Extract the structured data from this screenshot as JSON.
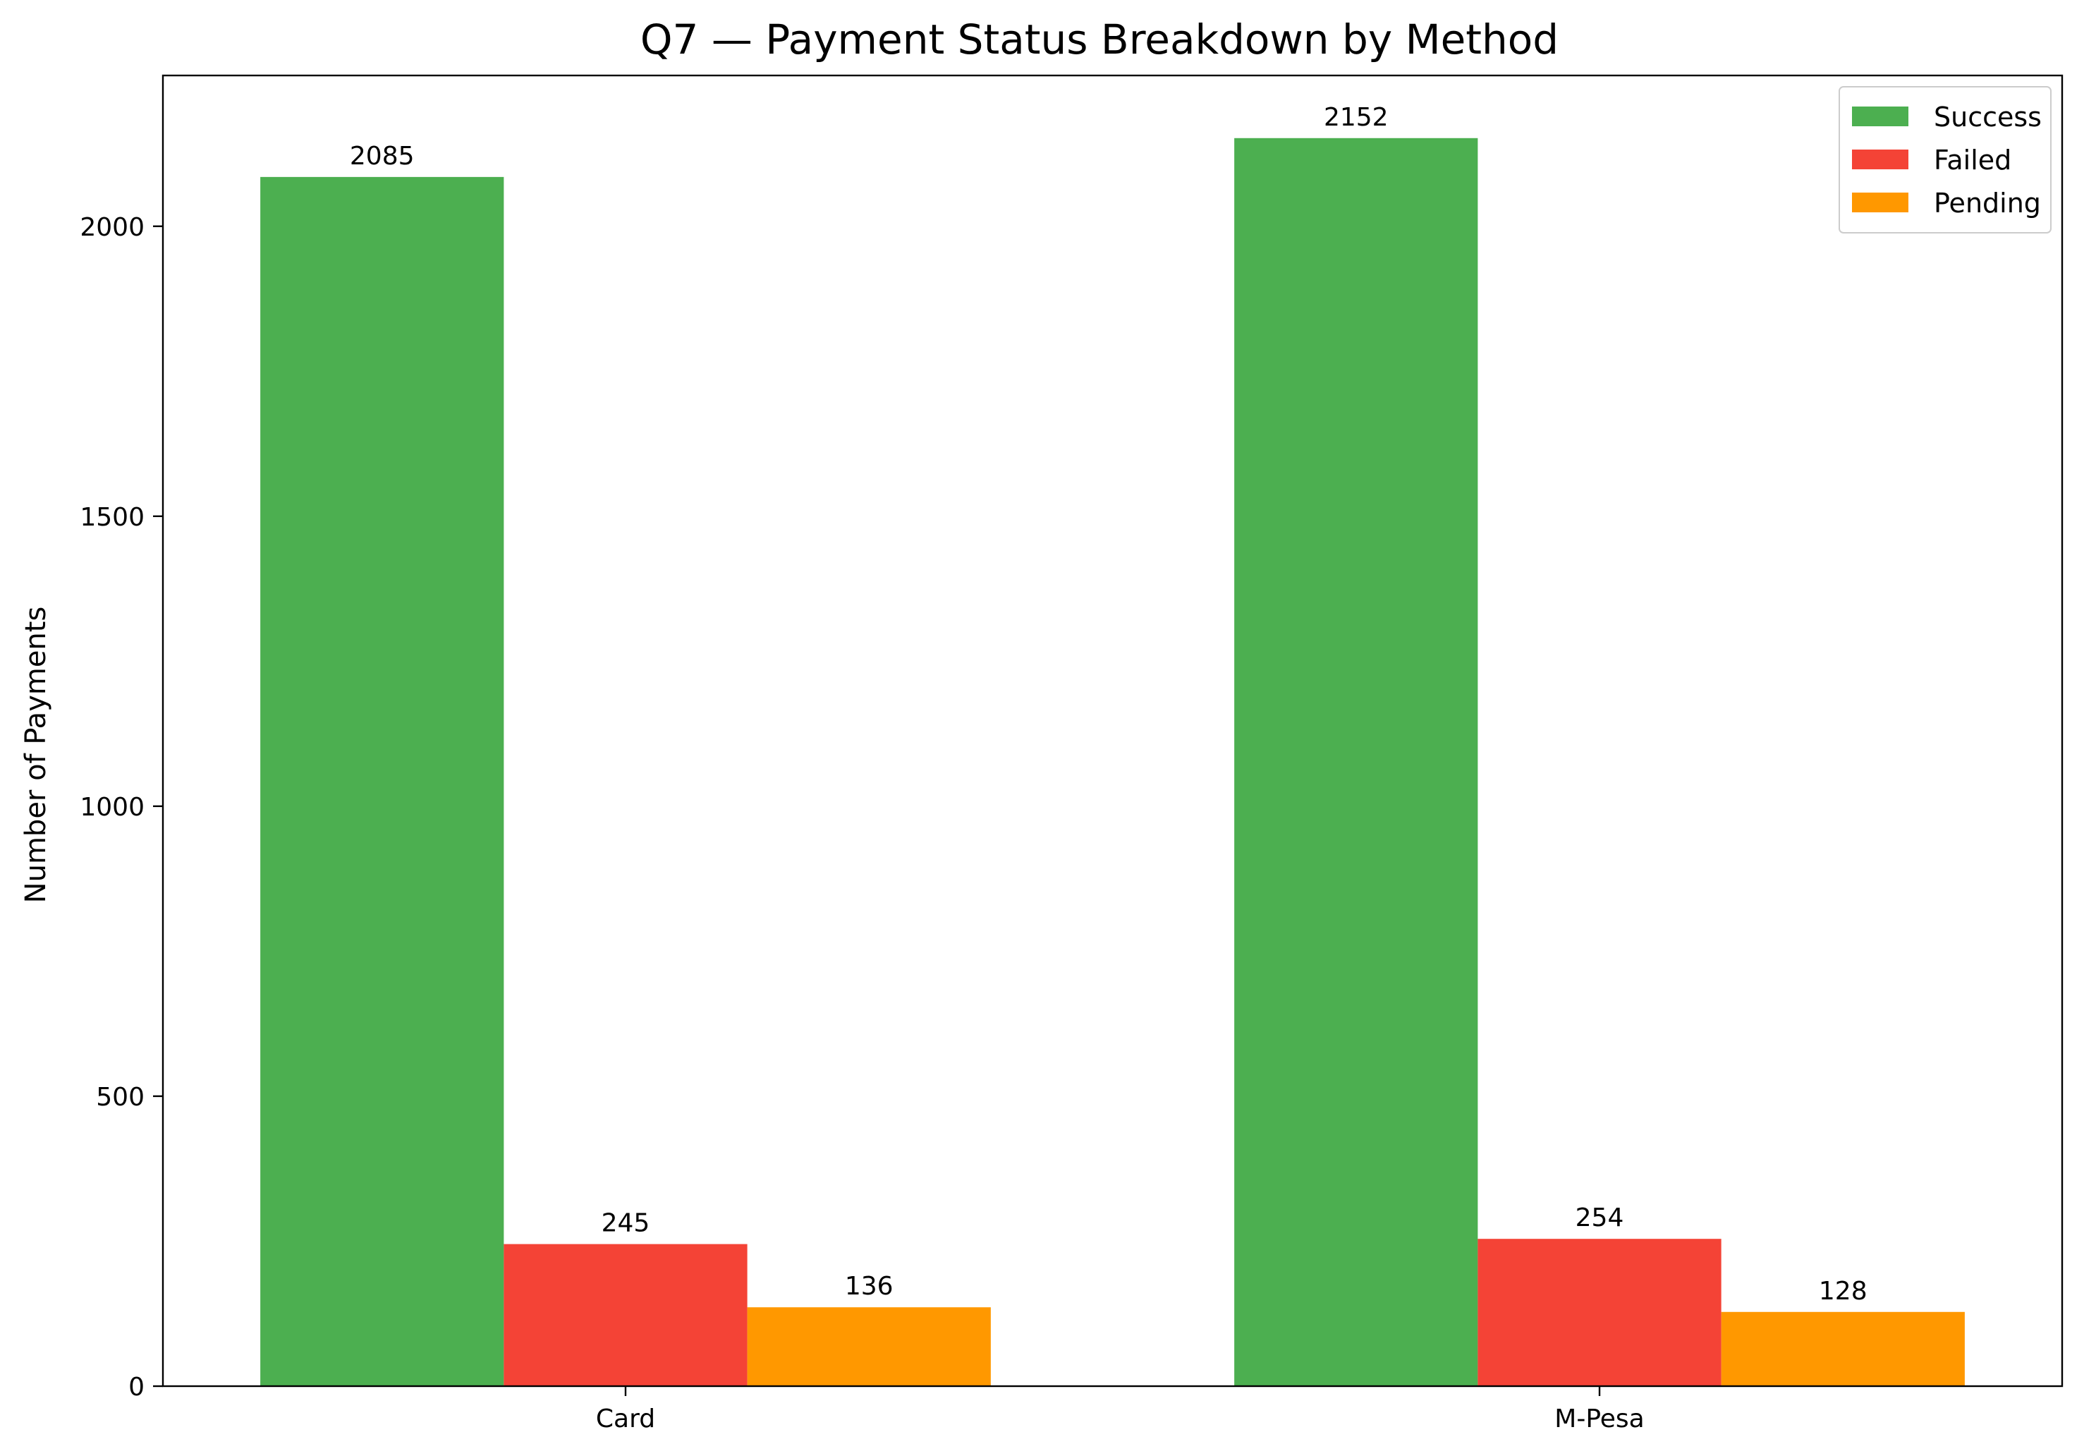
{
  "chart_data": {
    "type": "bar",
    "title": "Q7 — Payment Status Breakdown by Method",
    "xlabel": "",
    "ylabel": "Number of Payments",
    "categories": [
      "Card",
      "M-Pesa"
    ],
    "series": [
      {
        "name": "Success",
        "values": [
          2085,
          2152
        ],
        "color": "#4caf50"
      },
      {
        "name": "Failed",
        "values": [
          245,
          254
        ],
        "color": "#f44336"
      },
      {
        "name": "Pending",
        "values": [
          136,
          128
        ],
        "color": "#ff9800"
      }
    ],
    "ylim": [
      0,
      2260
    ],
    "yticks": [
      0,
      500,
      1000,
      1500,
      2000
    ],
    "grid": false,
    "legend_position": "top-right",
    "data_labels": true
  }
}
